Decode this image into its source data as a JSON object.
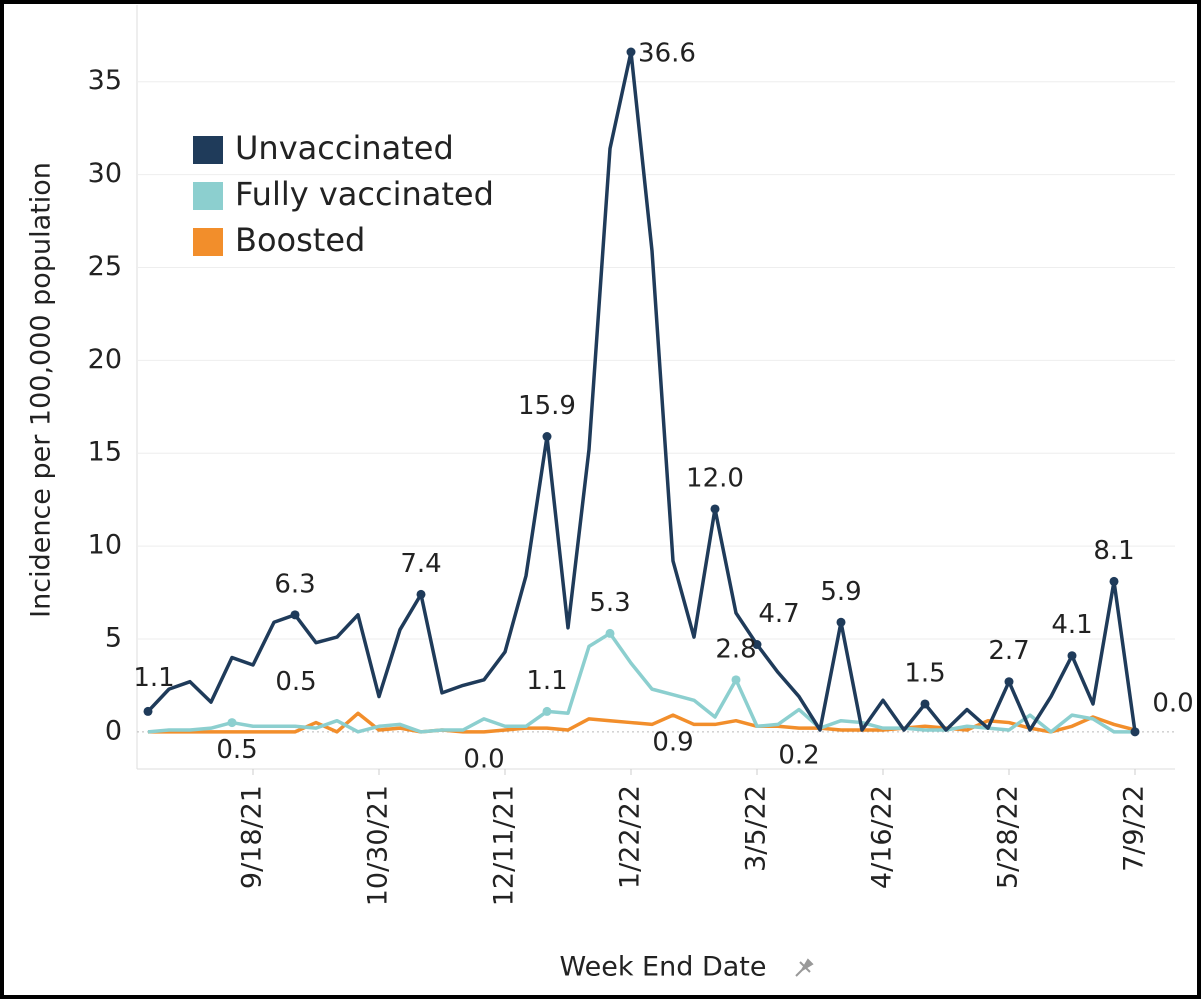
{
  "chart_data": {
    "type": "line",
    "y_label": "Incidence per 100,000 population",
    "x_label": "Week End Date",
    "x": [
      "8/14/21",
      "8/21/21",
      "8/28/21",
      "9/4/21",
      "9/11/21",
      "9/18/21",
      "9/25/21",
      "10/2/21",
      "10/9/21",
      "10/16/21",
      "10/23/21",
      "10/30/21",
      "11/6/21",
      "11/13/21",
      "11/20/21",
      "11/27/21",
      "12/4/21",
      "12/11/21",
      "12/18/21",
      "12/25/21",
      "1/1/22",
      "1/8/22",
      "1/15/22",
      "1/22/22",
      "1/29/22",
      "2/5/22",
      "2/12/22",
      "2/19/22",
      "2/26/22",
      "3/5/22",
      "3/12/22",
      "3/19/22",
      "3/26/22",
      "4/2/22",
      "4/9/22",
      "4/16/22",
      "4/23/22",
      "4/30/22",
      "5/7/22",
      "5/14/22",
      "5/21/22",
      "5/28/22",
      "6/4/22",
      "6/11/22",
      "6/18/22",
      "6/25/22",
      "7/2/22",
      "7/9/22"
    ],
    "xticks": [
      "9/18/21",
      "10/30/21",
      "12/11/21",
      "1/22/22",
      "3/5/22",
      "4/16/22",
      "5/28/22",
      "7/9/22"
    ],
    "ylim": [
      -2,
      38
    ],
    "yticks": [
      0,
      5,
      10,
      15,
      20,
      25,
      30,
      35
    ],
    "grid": true,
    "legend": "upper left",
    "series": [
      {
        "name": "Unvaccinated",
        "color": "#1f3b5a",
        "values": [
          1.1,
          2.3,
          2.7,
          1.6,
          4.0,
          3.6,
          5.9,
          6.3,
          4.8,
          5.1,
          6.3,
          1.9,
          5.5,
          7.4,
          2.1,
          2.5,
          2.8,
          4.3,
          8.4,
          15.9,
          5.6,
          15.2,
          31.4,
          36.6,
          25.9,
          9.2,
          5.1,
          12.0,
          6.4,
          4.7,
          3.2,
          1.9,
          0.1,
          5.9,
          0.1,
          1.7,
          0.1,
          1.5,
          0.1,
          1.2,
          0.2,
          2.7,
          0.1,
          1.9,
          4.1,
          1.5,
          8.1,
          0.0
        ],
        "value_labels": [
          "1.1",
          null,
          null,
          null,
          null,
          null,
          null,
          "6.3",
          null,
          null,
          null,
          null,
          null,
          "7.4",
          null,
          null,
          null,
          null,
          null,
          "15.9",
          null,
          null,
          null,
          "36.6",
          null,
          null,
          null,
          "12.0",
          null,
          "4.7",
          null,
          null,
          null,
          "5.9",
          null,
          null,
          null,
          "1.5",
          null,
          null,
          null,
          "2.7",
          null,
          null,
          "4.1",
          null,
          "8.1",
          "0.0"
        ]
      },
      {
        "name": "Fully vaccinated",
        "color": "#8ccfcf",
        "values": [
          0.0,
          0.1,
          0.1,
          0.2,
          0.5,
          0.3,
          0.3,
          0.3,
          0.2,
          0.6,
          0.0,
          0.3,
          0.4,
          0.0,
          0.1,
          0.1,
          0.7,
          0.3,
          0.3,
          1.1,
          1.0,
          4.6,
          5.3,
          3.7,
          2.3,
          2.0,
          1.7,
          0.8,
          2.8,
          0.3,
          0.4,
          1.2,
          0.2,
          0.6,
          0.5,
          0.2,
          0.2,
          0.1,
          0.1,
          0.3,
          0.2,
          0.1,
          0.9,
          0.0,
          0.9,
          0.7,
          0.0,
          0.0
        ],
        "value_labels": [
          null,
          null,
          null,
          null,
          "0.5",
          null,
          null,
          null,
          null,
          null,
          null,
          null,
          null,
          null,
          null,
          null,
          null,
          null,
          null,
          "1.1",
          null,
          null,
          "5.3",
          null,
          null,
          null,
          null,
          null,
          "2.8",
          null,
          null,
          null,
          null,
          null,
          null,
          null,
          null,
          null,
          null,
          null,
          null,
          null,
          null,
          null,
          null,
          null,
          null,
          null
        ]
      },
      {
        "name": "Boosted",
        "color": "#f28e2b",
        "values": [
          0.0,
          0.0,
          0.0,
          0.0,
          0.0,
          0.0,
          0.0,
          0.0,
          0.5,
          0.0,
          1.0,
          0.1,
          0.2,
          0.0,
          0.1,
          0.0,
          0.0,
          0.1,
          0.2,
          0.2,
          0.1,
          0.7,
          0.6,
          0.5,
          0.4,
          0.9,
          0.4,
          0.4,
          0.6,
          0.3,
          0.3,
          0.2,
          0.2,
          0.1,
          0.1,
          0.1,
          0.2,
          0.3,
          0.2,
          0.1,
          0.6,
          0.5,
          0.2,
          0.0,
          0.3,
          0.8,
          0.4,
          0.1
        ],
        "value_labels": [
          null,
          null,
          null,
          null,
          null,
          null,
          null,
          null,
          "0.5",
          null,
          null,
          null,
          null,
          null,
          null,
          null,
          "0.0",
          null,
          null,
          null,
          null,
          null,
          null,
          null,
          null,
          "0.9",
          null,
          null,
          null,
          null,
          null,
          "0.2",
          null,
          null,
          null,
          null,
          null,
          null,
          null,
          null,
          null,
          null,
          null,
          null,
          null,
          null,
          null,
          null
        ]
      }
    ]
  }
}
